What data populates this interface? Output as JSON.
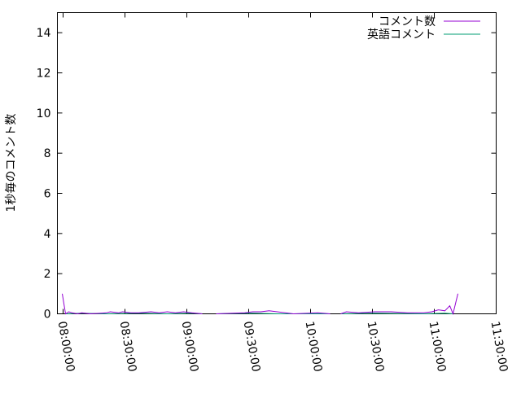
{
  "chart_data": {
    "type": "line",
    "title": "",
    "xlabel": "",
    "ylabel": "1秒毎のコメント数",
    "xlim": [
      "07:57:14",
      "11:30:00"
    ],
    "ylim": [
      0,
      15
    ],
    "x_ticks": [
      "08:00:00",
      "08:30:00",
      "09:00:00",
      "09:30:00",
      "10:00:00",
      "10:30:00",
      "11:00:00",
      "11:30:00"
    ],
    "y_ticks": [
      0,
      2,
      4,
      6,
      8,
      10,
      12,
      14
    ],
    "grid": false,
    "legend_position": "top-right",
    "series": [
      {
        "name": "コメント数",
        "color": "#9400d3",
        "x": [
          "07:59:36",
          "08:01:11",
          "08:02:46",
          "08:04:20",
          "08:07:06",
          "08:09:05",
          "08:13:02",
          "08:20:55",
          "08:22:54",
          "08:26:50",
          "08:28:48",
          "08:32:45",
          "08:36:42",
          "08:42:38",
          "08:46:35",
          "08:50:32",
          "08:54:28",
          "08:58:25",
          "09:02:22",
          "09:07:30",
          null,
          "09:14:13",
          "09:28:01",
          "09:31:58",
          "09:35:55",
          "09:39:52",
          "09:43:49",
          "09:51:42",
          "10:03:33",
          "10:09:28",
          null,
          "10:14:36",
          "10:17:22",
          "10:23:17",
          "10:31:11",
          "10:39:05",
          "10:46:58",
          "10:54:52",
          "10:58:49",
          "11:01:58",
          "11:05:08",
          "11:07:30",
          "11:09:05",
          "11:11:26"
        ],
        "y": [
          1.0,
          0.0,
          0.1,
          0.05,
          0,
          0.05,
          0,
          0.05,
          0.1,
          0.05,
          0.1,
          0.05,
          0.05,
          0.1,
          0.05,
          0.1,
          0.05,
          0.1,
          0.05,
          0,
          null,
          0,
          0.05,
          0.1,
          0.1,
          0.15,
          0.1,
          0,
          0.05,
          0,
          null,
          0,
          0.1,
          0.05,
          0.1,
          0.1,
          0.05,
          0.05,
          0.1,
          0.2,
          0.15,
          0.4,
          0,
          1.0
        ]
      },
      {
        "name": "英語コメント",
        "color": "#009e73",
        "x": [
          "08:01:11",
          "08:09:05",
          "08:20:55",
          "08:36:42",
          "08:50:32",
          "09:02:22",
          "09:07:30",
          null,
          "09:14:13",
          "09:31:58",
          "09:43:49",
          "10:09:28",
          null,
          "10:14:36",
          "10:31:11",
          "10:54:52",
          "11:05:08",
          "11:09:05"
        ],
        "y": [
          0,
          0.03,
          0,
          0.03,
          0,
          0.03,
          0,
          null,
          0,
          0.03,
          0,
          0,
          null,
          0,
          0.03,
          0,
          0.03,
          0
        ]
      }
    ]
  }
}
